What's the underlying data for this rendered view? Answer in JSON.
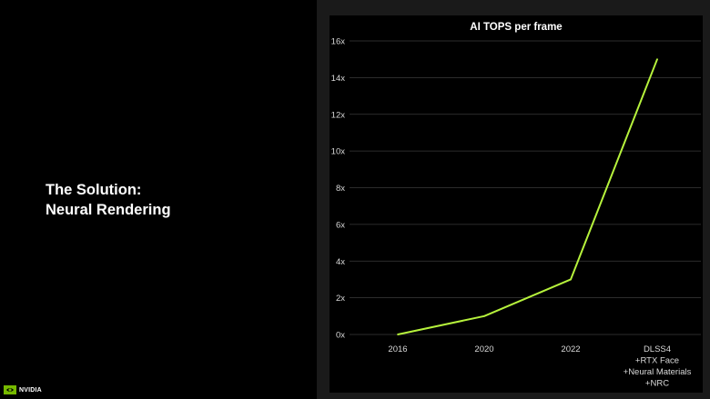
{
  "slide": {
    "title_line1": "The Solution:",
    "title_line2": "Neural Rendering",
    "logo_text": "NVIDIA"
  },
  "colors": {
    "background": "#000000",
    "right_panel": "#1a1a1a",
    "line": "#b6f23c",
    "gridline": "#3a3a3a",
    "text": "#ffffff",
    "axis_text": "#d9d9d9"
  },
  "chart_data": {
    "type": "line",
    "title": "AI TOPS per frame",
    "xlabel": "",
    "ylabel": "",
    "categories": [
      [
        "2016"
      ],
      [
        "2020"
      ],
      [
        "2022"
      ],
      [
        "DLSS4",
        "+RTX Face",
        "+Neural Materials",
        "+NRC"
      ]
    ],
    "values": [
      0,
      1,
      3,
      15
    ],
    "ylim": [
      0,
      16
    ],
    "yticks": [
      0,
      2,
      4,
      6,
      8,
      10,
      12,
      14,
      16
    ],
    "ytick_labels": [
      "0x",
      "2x",
      "4x",
      "6x",
      "8x",
      "10x",
      "12x",
      "14x",
      "16x"
    ],
    "grid": true,
    "legend": "none"
  }
}
